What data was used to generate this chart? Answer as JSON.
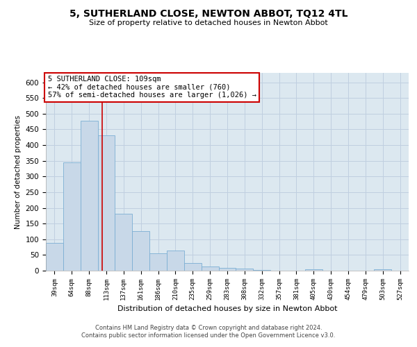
{
  "title": "5, SUTHERLAND CLOSE, NEWTON ABBOT, TQ12 4TL",
  "subtitle": "Size of property relative to detached houses in Newton Abbot",
  "xlabel": "Distribution of detached houses by size in Newton Abbot",
  "ylabel": "Number of detached properties",
  "categories": [
    "39sqm",
    "64sqm",
    "88sqm",
    "113sqm",
    "137sqm",
    "161sqm",
    "186sqm",
    "210sqm",
    "235sqm",
    "259sqm",
    "283sqm",
    "308sqm",
    "332sqm",
    "357sqm",
    "381sqm",
    "405sqm",
    "430sqm",
    "454sqm",
    "479sqm",
    "503sqm",
    "527sqm"
  ],
  "values": [
    88,
    345,
    478,
    430,
    181,
    125,
    55,
    65,
    25,
    13,
    8,
    6,
    2,
    1,
    0,
    5,
    0,
    1,
    0,
    5,
    0
  ],
  "bar_color": "#c8d8e8",
  "bar_edge_color": "#7bafd4",
  "red_line_index": 2.75,
  "annotation_text": "5 SUTHERLAND CLOSE: 109sqm\n← 42% of detached houses are smaller (760)\n57% of semi-detached houses are larger (1,026) →",
  "annotation_box_color": "#ffffff",
  "annotation_box_edge_color": "#cc0000",
  "red_line_color": "#cc0000",
  "grid_color": "#c0cfe0",
  "background_color": "#dce8f0",
  "footer_text": "Contains HM Land Registry data © Crown copyright and database right 2024.\nContains public sector information licensed under the Open Government Licence v3.0.",
  "ylim": [
    0,
    630
  ],
  "yticks": [
    0,
    50,
    100,
    150,
    200,
    250,
    300,
    350,
    400,
    450,
    500,
    550,
    600
  ]
}
